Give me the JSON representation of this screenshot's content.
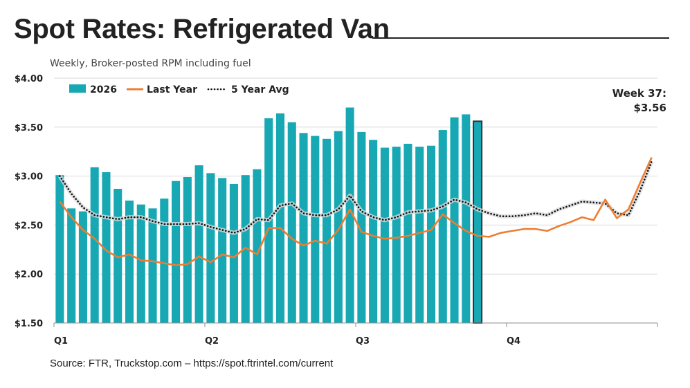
{
  "title": "Spot Rates: Refrigerated Van",
  "subtitle": "Weekly, Broker-posted RPM including fuel",
  "source": "Source: FTR, Truckstop.com – https://spot.ftrintel.com/current",
  "colors": {
    "bars": "#17a8b4",
    "highlight_border": "#333333",
    "last_year": "#ed7d31",
    "avg": "#111111",
    "avg_halo": "#d9d9d9",
    "grid": "#d9d9d9"
  },
  "chart_data": {
    "type": "bar",
    "ylim": [
      1.5,
      4.0
    ],
    "y_ticks": [
      {
        "value": 4.0,
        "label": "$4.00"
      },
      {
        "value": 3.5,
        "label": "$3.50"
      },
      {
        "value": 3.0,
        "label": "$3.00"
      },
      {
        "value": 2.5,
        "label": "$2.50"
      },
      {
        "value": 2.0,
        "label": "$2.00"
      },
      {
        "value": 1.5,
        "label": "$1.50"
      }
    ],
    "x_weeks": 52,
    "x_ticks": [
      {
        "week": 1,
        "label": "Q1"
      },
      {
        "week": 14,
        "label": "Q2"
      },
      {
        "week": 27,
        "label": "Q3"
      },
      {
        "week": 40,
        "label": "Q4"
      }
    ],
    "grid": true,
    "legend_position": "top-left",
    "highlight_week": 37,
    "annotation": {
      "line1": "Week 37:",
      "line2": "$3.56"
    },
    "series": [
      {
        "name": "2026",
        "type": "bar",
        "values": [
          3.01,
          2.67,
          2.64,
          3.09,
          3.04,
          2.87,
          2.75,
          2.71,
          2.67,
          2.77,
          2.95,
          2.99,
          3.11,
          3.03,
          2.98,
          2.92,
          3.01,
          3.07,
          3.59,
          3.64,
          3.55,
          3.44,
          3.41,
          3.38,
          3.46,
          3.7,
          3.45,
          3.37,
          3.29,
          3.3,
          3.33,
          3.3,
          3.31,
          3.47,
          3.6,
          3.63,
          3.56
        ]
      },
      {
        "name": "Last Year",
        "type": "line",
        "values": [
          2.74,
          2.58,
          2.45,
          2.36,
          2.24,
          2.17,
          2.2,
          2.14,
          2.13,
          2.11,
          2.09,
          2.1,
          2.18,
          2.12,
          2.2,
          2.17,
          2.27,
          2.2,
          2.47,
          2.47,
          2.36,
          2.29,
          2.34,
          2.31,
          2.45,
          2.66,
          2.43,
          2.39,
          2.36,
          2.37,
          2.39,
          2.42,
          2.45,
          2.61,
          2.52,
          2.44,
          2.39,
          2.38,
          2.42,
          2.44,
          2.46,
          2.46,
          2.44,
          2.49,
          2.53,
          2.58,
          2.55,
          2.76,
          2.57,
          2.66,
          2.93,
          3.19
        ]
      },
      {
        "name": "5 Year Avg",
        "type": "line",
        "values": [
          3.0,
          2.82,
          2.68,
          2.6,
          2.58,
          2.56,
          2.58,
          2.58,
          2.54,
          2.51,
          2.51,
          2.51,
          2.52,
          2.48,
          2.45,
          2.42,
          2.46,
          2.56,
          2.55,
          2.7,
          2.72,
          2.62,
          2.6,
          2.6,
          2.66,
          2.8,
          2.64,
          2.58,
          2.55,
          2.58,
          2.63,
          2.64,
          2.65,
          2.69,
          2.76,
          2.73,
          2.66,
          2.62,
          2.59,
          2.59,
          2.6,
          2.62,
          2.6,
          2.66,
          2.7,
          2.74,
          2.73,
          2.72,
          2.62,
          2.6,
          2.85,
          3.15
        ]
      }
    ]
  }
}
